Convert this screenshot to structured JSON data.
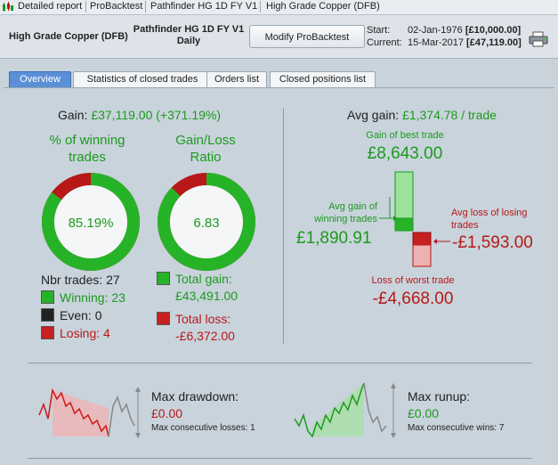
{
  "titlebar": {
    "items": [
      "Detailed report",
      "ProBacktest",
      "Pathfinder HG 1D FY V1",
      "High Grade Copper (DFB)"
    ]
  },
  "header": {
    "instrument": "High Grade Copper (DFB)",
    "strategy_line1": "Pathfinder HG 1D FY V1",
    "strategy_line2": "Daily",
    "modify_button": "Modify ProBacktest",
    "start_label": "Start:",
    "start_date": "02-Jan-1976",
    "start_capital": "[£10,000.00]",
    "current_label": "Current:",
    "current_date": "15-Mar-2017",
    "current_capital": "[£47,119.00]"
  },
  "tabs": [
    {
      "label": "Overview",
      "active": true
    },
    {
      "label": "Statistics of closed trades",
      "active": false
    },
    {
      "label": "Orders list",
      "active": false
    },
    {
      "label": "Closed positions list",
      "active": false
    }
  ],
  "overview": {
    "gain_label": "Gain: ",
    "gain_value": "£37,119.00 (+371.19%)",
    "winning_title_1": "% of winning",
    "winning_title_2": "trades",
    "winning_pct_text": "85.19%",
    "winning_fraction": 0.8519,
    "ratio_title_1": "Gain/Loss",
    "ratio_title_2": "Ratio",
    "ratio_text": "6.83",
    "ratio_fraction": 0.8722,
    "nbr_trades_label": "Nbr trades: ",
    "nbr_trades": "27",
    "winning_label": "Winning: ",
    "winning_count": "23",
    "even_label": "Even: ",
    "even_count": "0",
    "losing_label": "Losing: ",
    "losing_count": "4",
    "total_gain_label": "Total gain:",
    "total_gain": "£43,491.00",
    "total_loss_label": "Total loss:",
    "total_loss": "-£6,372.00",
    "avg_gain_label": "Avg gain: ",
    "avg_gain_value": "£1,374.78 / trade",
    "best_trade_label": "Gain of best trade",
    "best_trade": "£8,643.00",
    "avg_win_label_1": "Avg gain of",
    "avg_win_label_2": "winning trades",
    "avg_win": "£1,890.91",
    "avg_loss_label_1": "Avg loss of losing",
    "avg_loss_label_2": "trades",
    "avg_loss": "-£1,593.00",
    "worst_trade_label": "Loss of worst trade",
    "worst_trade": "-£4,668.00",
    "drawdown_label": "Max drawdown:",
    "drawdown_value": "£0.00",
    "drawdown_consec": "Max consecutive losses: 1",
    "runup_label": "Max runup:",
    "runup_value": "£0.00",
    "runup_consec": "Max consecutive wins: 7"
  },
  "colors": {
    "green": "#1d9a1d",
    "red": "#b81818",
    "tab_active": "#5b8fd6"
  }
}
